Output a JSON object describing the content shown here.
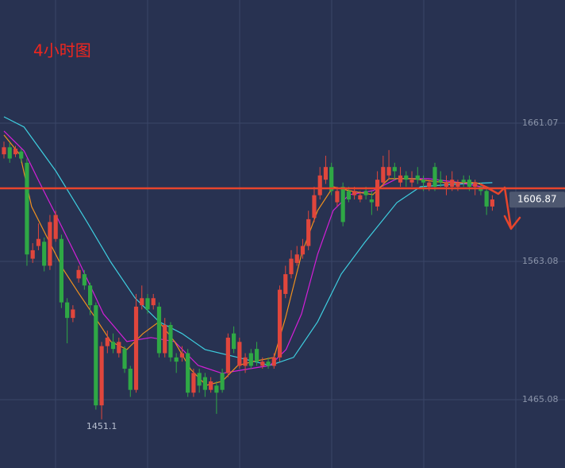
{
  "chart_data": {
    "type": "candlestick",
    "title": "4小时图",
    "up_color": "#e0463c",
    "down_color": "#2fa845",
    "open": [
      1639,
      1644,
      1639,
      1641,
      1633,
      1565,
      1574,
      1577,
      1560,
      1579,
      1579,
      1534,
      1523,
      1551,
      1554,
      1546,
      1532,
      1461,
      1503,
      1506,
      1498,
      1501,
      1487,
      1472,
      1532,
      1537,
      1532,
      1531,
      1498,
      1518,
      1495,
      1495,
      1498,
      1470,
      1484,
      1481,
      1472,
      1475,
      1484,
      1484,
      1512,
      1489,
      1489,
      1498,
      1501,
      1489,
      1492,
      1489,
      1495,
      1540,
      1554,
      1562,
      1568,
      1574,
      1594,
      1610,
      1621,
      1630,
      1605,
      1616,
      1613,
      1610,
      1607,
      1613,
      1607,
      1602,
      1619,
      1624,
      1630,
      1619,
      1624,
      1619,
      1624,
      1621,
      1616,
      1630,
      1621,
      1616,
      1616,
      1616,
      1621,
      1621,
      1616,
      1616,
      1613,
      1602
    ],
    "high": [
      1648,
      1647,
      1645,
      1643,
      1636,
      1576,
      1590,
      1580,
      1596,
      1599,
      1582,
      1537,
      1532,
      1560,
      1557,
      1548,
      1534,
      1506,
      1514,
      1512,
      1509,
      1503,
      1489,
      1540,
      1546,
      1540,
      1540,
      1534,
      1523,
      1520,
      1498,
      1503,
      1501,
      1487,
      1487,
      1484,
      1481,
      1478,
      1487,
      1512,
      1517,
      1509,
      1498,
      1501,
      1506,
      1495,
      1495,
      1498,
      1546,
      1560,
      1571,
      1574,
      1579,
      1599,
      1616,
      1630,
      1638,
      1633,
      1616,
      1619,
      1616,
      1616,
      1613,
      1616,
      1613,
      1627,
      1638,
      1642,
      1633,
      1630,
      1627,
      1627,
      1630,
      1624,
      1621,
      1633,
      1627,
      1624,
      1627,
      1621,
      1624,
      1624,
      1621,
      1619,
      1616,
      1610
    ],
    "low": [
      1636,
      1633,
      1637,
      1633,
      1560,
      1562,
      1571,
      1556,
      1557,
      1577,
      1530,
      1505,
      1520,
      1548,
      1543,
      1525,
      1458,
      1451.1,
      1498,
      1498,
      1495,
      1484,
      1467,
      1470,
      1529,
      1526,
      1529,
      1495,
      1495,
      1492,
      1484,
      1492,
      1467,
      1467,
      1470,
      1467,
      1470,
      1455,
      1470,
      1481,
      1498,
      1487,
      1484,
      1487,
      1489,
      1487,
      1487,
      1487,
      1492,
      1537,
      1551,
      1560,
      1565,
      1571,
      1591,
      1607,
      1618,
      1610,
      1602,
      1588,
      1605,
      1607,
      1605,
      1607,
      1596,
      1599,
      1616,
      1621,
      1621,
      1616,
      1616,
      1616,
      1618,
      1613,
      1613,
      1613,
      1616,
      1610,
      1613,
      1613,
      1616,
      1613,
      1610,
      1610,
      1596,
      1599
    ],
    "close": [
      1644,
      1636,
      1643,
      1636,
      1568,
      1571,
      1579,
      1560,
      1591,
      1596,
      1534,
      1523,
      1529,
      1557,
      1546,
      1532,
      1461,
      1503,
      1509,
      1501,
      1506,
      1487,
      1472,
      1531,
      1537,
      1529,
      1537,
      1498,
      1518,
      1495,
      1492,
      1498,
      1470,
      1484,
      1475,
      1472,
      1478,
      1470,
      1472,
      1509,
      1501,
      1506,
      1495,
      1489,
      1492,
      1492,
      1489,
      1495,
      1543,
      1554,
      1565,
      1568,
      1574,
      1593,
      1610,
      1624,
      1630,
      1613,
      1613,
      1591,
      1607,
      1613,
      1610,
      1610,
      1605,
      1621,
      1630,
      1630,
      1627,
      1624,
      1621,
      1621,
      1621,
      1619,
      1619,
      1616,
      1619,
      1619,
      1621,
      1619,
      1619,
      1616,
      1619,
      1613,
      1602,
      1607
    ],
    "lines": [
      {
        "color": "#3ecfe0",
        "x": [
          0,
          3.5,
          9,
          14.5,
          18.6,
          22.8,
          27,
          31,
          35,
          40.7,
          46.3,
          50.4,
          54.6,
          58.7,
          62.8,
          68.4,
          72.5,
          78,
          85
        ],
        "values": [
          1665.6,
          1658.3,
          1627.3,
          1590.7,
          1562.5,
          1537.2,
          1520.3,
          1511.9,
          1500.6,
          1495.0,
          1489.3,
          1495.0,
          1520.3,
          1554.1,
          1576.6,
          1604.8,
          1616.0,
          1617.7,
          1618.9
        ]
      },
      {
        "color": "#d41fd8",
        "x": [
          0,
          3.5,
          6.2,
          9,
          13.1,
          17.3,
          21.4,
          25.6,
          29.7,
          33.8,
          38,
          42.1,
          46.3,
          49.1,
          51.8,
          54.6,
          57.3,
          60.1,
          64.2,
          68.4,
          73.9,
          79.4,
          85
        ],
        "values": [
          1655.5,
          1641.4,
          1618.9,
          1596.3,
          1562.5,
          1525.9,
          1506.2,
          1509.1,
          1506.2,
          1489.3,
          1483.7,
          1486.5,
          1489.3,
          1500.6,
          1525.9,
          1568.2,
          1599.2,
          1610.4,
          1613.2,
          1621.7,
          1621.7,
          1618.9,
          1614.4
        ]
      },
      {
        "color": "#f0901e",
        "x": [
          0,
          2.8,
          4.8,
          7.6,
          10.4,
          13.1,
          15.9,
          18.6,
          21.4,
          24.2,
          27,
          29.7,
          32.5,
          35.2,
          38,
          40.7,
          43.5,
          47,
          49,
          51.8,
          54.6,
          57.3,
          60.1,
          64.2,
          67,
          71.1,
          76.7,
          82.2,
          85
        ],
        "values": [
          1652.7,
          1638.6,
          1602.0,
          1579.4,
          1556.9,
          1540.0,
          1523.1,
          1506.2,
          1500.6,
          1511.9,
          1520.3,
          1506.2,
          1486.5,
          1475.2,
          1478.1,
          1489.3,
          1492.2,
          1495.0,
          1523.1,
          1568.2,
          1599.2,
          1616.0,
          1613.2,
          1610.4,
          1621.7,
          1621.7,
          1618.9,
          1618.9,
          1614.4
        ]
      }
    ],
    "hline": {
      "value": 1614.9,
      "color": "#e8452c"
    },
    "last_price": 1606.87,
    "ylim": [
      1416.6,
      1748.4
    ],
    "yticks": [
      1465.08,
      1563.08,
      1661.07
    ],
    "grid": true
  }
}
